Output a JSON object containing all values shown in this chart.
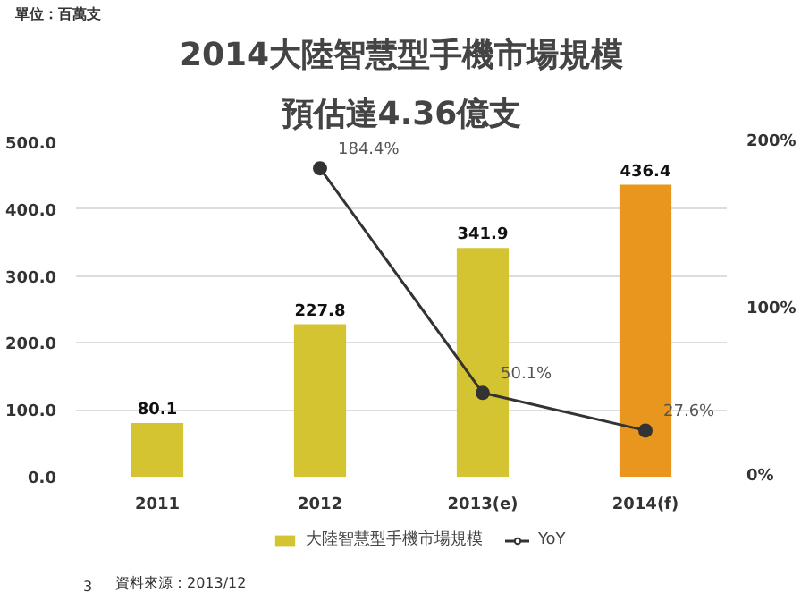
{
  "chart_data": {
    "type": "bar",
    "title": "2014大陸智慧型手機市場規模",
    "subtitle": "預估達4.36億支",
    "categories": [
      "2011",
      "2012",
      "2013(e)",
      "2014(f)"
    ],
    "series": [
      {
        "name": "大陸智慧型手機市場規模",
        "type": "bar",
        "color": "#d4c431",
        "colors": [
          "#d4c431",
          "#d4c431",
          "#d4c431",
          "#e8961e"
        ],
        "values": [
          80.1,
          227.8,
          341.9,
          436.4
        ],
        "value_labels": [
          "80.1",
          "227.8",
          "341.9",
          "436.4"
        ]
      },
      {
        "name": "YoY",
        "type": "line",
        "axis": "y2",
        "color": "#333333",
        "marker": "circle",
        "values": [
          null,
          184.4,
          50.1,
          27.6
        ],
        "value_labels": [
          null,
          "184.4%",
          "50.1%",
          "27.6%"
        ]
      }
    ],
    "ylim": [
      0,
      500
    ],
    "yticks": [
      {
        "value": 0,
        "label": "0.0"
      },
      {
        "value": 100,
        "label": "100.0"
      },
      {
        "value": 200,
        "label": "200.0"
      },
      {
        "value": 300,
        "label": "300.0"
      },
      {
        "value": 400,
        "label": "400.0"
      },
      {
        "value": 500,
        "label": "500.0"
      }
    ],
    "y2lim": [
      0,
      200
    ],
    "y2ticks": [
      {
        "value": 0,
        "label": "0%"
      },
      {
        "value": 100,
        "label": "100%"
      },
      {
        "value": 200,
        "label": "200%"
      }
    ],
    "grid": "y",
    "legend": "bottom",
    "annotations": [
      "單位：百萬支",
      "3",
      "資料來源：2013/12"
    ]
  }
}
